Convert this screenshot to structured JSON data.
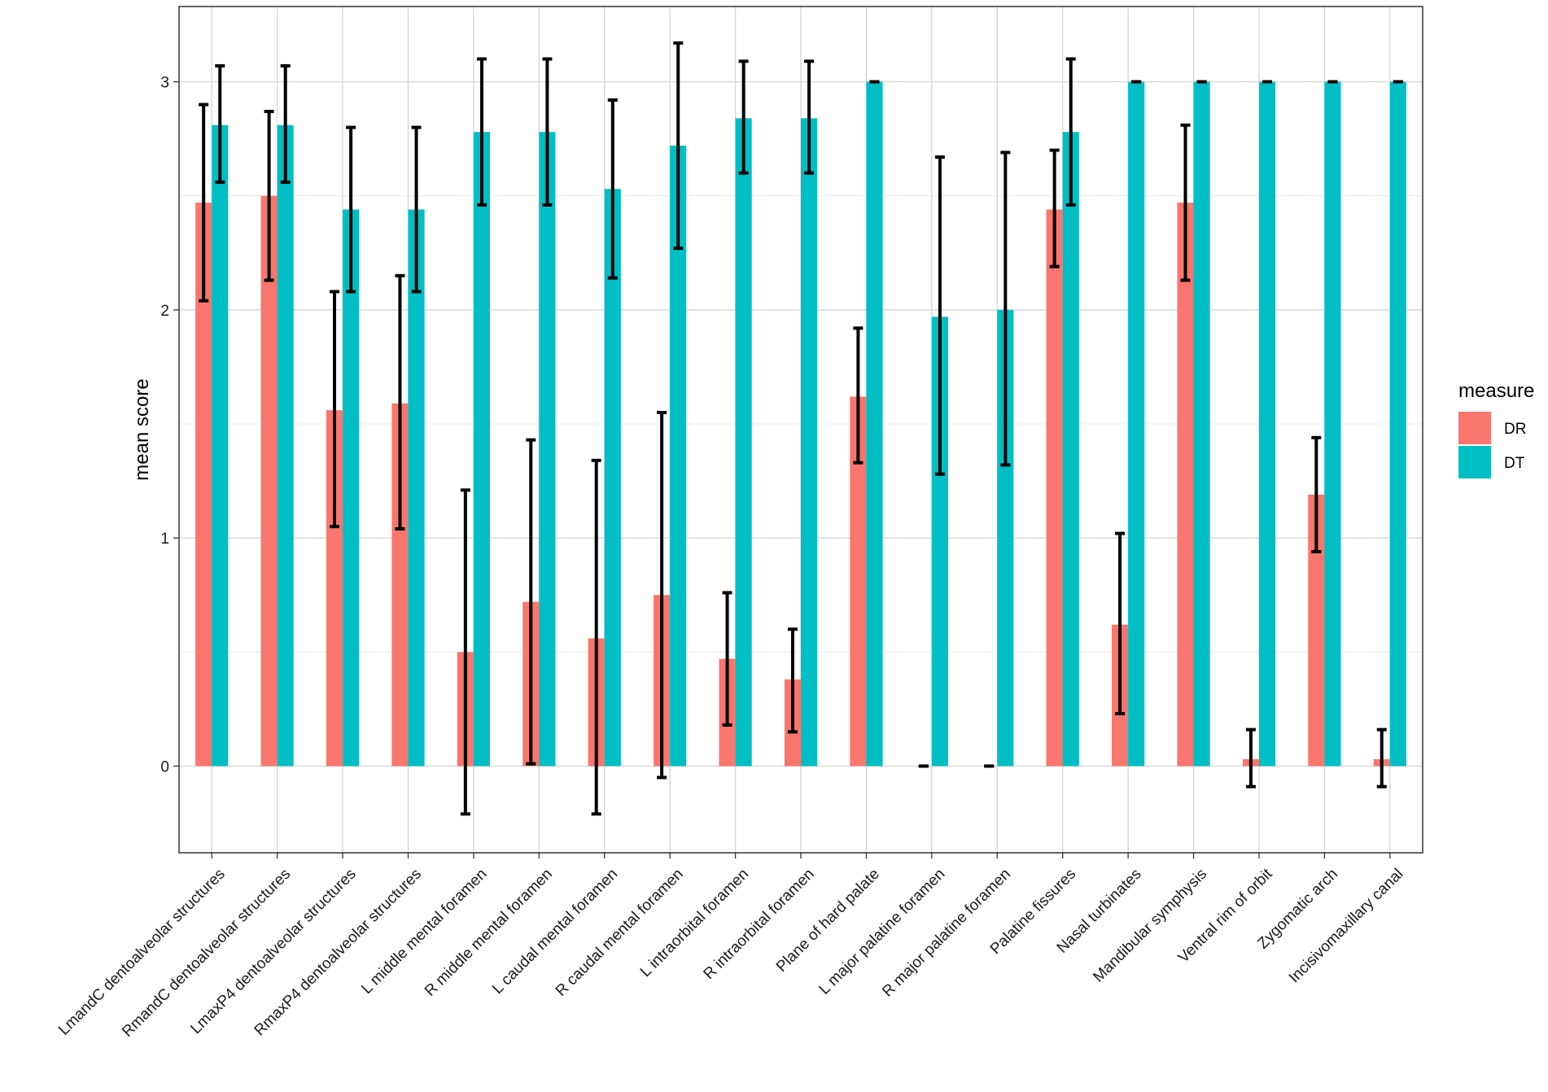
{
  "chart_data": {
    "type": "bar",
    "title": "",
    "xlabel": "",
    "ylabel": "mean score",
    "ylim": [
      -0.38,
      3.33
    ],
    "yticks": [
      0,
      1,
      2,
      3
    ],
    "grid": true,
    "legend_title": "measure",
    "legend_position": "right",
    "categories": [
      "LmandC dentoalveolar structures",
      "RmandC dentoalveolar structures",
      "LmaxP4 dentoalveolar structures",
      "RmaxP4 dentoalveolar structures",
      "L middle mental foramen",
      "R middle mental foramen",
      "L caudal mental foramen",
      "R caudal mental foramen",
      "L intraorbital foramen",
      "R intraorbital foramen",
      "Plane of hard palate",
      "L major palatine foramen",
      "R major palatine foramen",
      "Palatine fissures",
      "Nasal turbinates",
      "Mandibular symphysis",
      "Ventral rim of orbit",
      "Zygomatic arch",
      "Incisivomaxillary canal"
    ],
    "series": [
      {
        "name": "DR",
        "color": "#f8766d",
        "values": [
          2.47,
          2.5,
          1.56,
          1.59,
          0.5,
          0.72,
          0.56,
          0.75,
          0.47,
          0.38,
          1.62,
          0.0,
          0.0,
          2.44,
          0.62,
          2.47,
          0.03,
          1.19,
          0.03
        ],
        "error_low": [
          2.04,
          2.13,
          1.05,
          1.04,
          -0.21,
          0.01,
          -0.21,
          -0.05,
          0.18,
          0.15,
          1.33,
          0.0,
          0.0,
          2.19,
          0.23,
          2.13,
          -0.09,
          0.94,
          -0.09
        ],
        "error_high": [
          2.9,
          2.87,
          2.08,
          2.15,
          1.21,
          1.43,
          1.34,
          1.55,
          0.76,
          0.6,
          1.92,
          0.0,
          0.0,
          2.7,
          1.02,
          2.81,
          0.16,
          1.44,
          0.16
        ]
      },
      {
        "name": "DT",
        "color": "#00bfc4",
        "values": [
          2.81,
          2.81,
          2.44,
          2.44,
          2.78,
          2.78,
          2.53,
          2.72,
          2.84,
          2.84,
          3.0,
          1.97,
          2.0,
          2.78,
          3.0,
          3.0,
          3.0,
          3.0,
          3.0
        ],
        "error_low": [
          2.56,
          2.56,
          2.08,
          2.08,
          2.46,
          2.46,
          2.14,
          2.27,
          2.6,
          2.6,
          3.0,
          1.28,
          1.32,
          2.46,
          3.0,
          3.0,
          3.0,
          3.0,
          3.0
        ],
        "error_high": [
          3.07,
          3.07,
          2.8,
          2.8,
          3.1,
          3.1,
          2.92,
          3.17,
          3.09,
          3.09,
          3.0,
          2.67,
          2.69,
          3.1,
          3.0,
          3.0,
          3.0,
          3.0,
          3.0
        ]
      }
    ]
  }
}
